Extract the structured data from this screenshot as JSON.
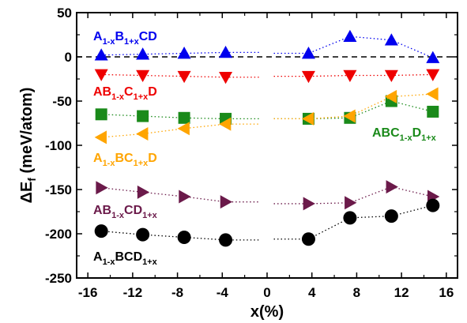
{
  "chart_data": {
    "type": "scatter",
    "xlabel": "x(%)",
    "ylabel": "ΔE",
    "ylabel_sub": "f",
    "ylabel_unit": " (meV/atom)",
    "xlim": [
      -17,
      17
    ],
    "ylim": [
      -250,
      50
    ],
    "xticks": [
      -16,
      -12,
      -8,
      -4,
      0,
      4,
      8,
      12,
      16
    ],
    "yticks": [
      50,
      0,
      -50,
      -100,
      -150,
      -200,
      -250
    ],
    "xticklabels": [
      "-16",
      "-12",
      "-8",
      "-4",
      "0",
      "4",
      "8",
      "12",
      "16"
    ],
    "yticklabels": [
      "50",
      "0",
      "-50",
      "-100",
      "-150",
      "-200",
      "-250"
    ],
    "reference_line": {
      "y": 0,
      "style": "dashed",
      "color": "#000000"
    },
    "series": [
      {
        "name": "A1-xB1+xCD",
        "marker": "triangle-up",
        "color": "#0000ee",
        "x": [
          -14.8,
          -11.1,
          -7.4,
          -3.7,
          3.7,
          7.4,
          11.1,
          14.8
        ],
        "y": [
          2,
          3,
          4,
          5,
          4,
          23,
          19,
          -1
        ]
      },
      {
        "name": "AB1-xC1+xD",
        "marker": "triangle-down",
        "color": "#ee0000",
        "x": [
          -14.8,
          -11.1,
          -7.4,
          -3.7,
          3.7,
          7.4,
          11.1,
          14.8
        ],
        "y": [
          -20,
          -21,
          -22,
          -23,
          -22,
          -21,
          -21,
          -20
        ]
      },
      {
        "name": "ABC1-xD1+x",
        "marker": "square",
        "color": "#1a8a1a",
        "x": [
          -14.8,
          -11.1,
          -7.4,
          -3.7,
          3.7,
          7.4,
          11.1,
          14.8
        ],
        "y": [
          -65,
          -67,
          -69,
          -70,
          -70,
          -69,
          -50,
          -62
        ]
      },
      {
        "name": "A1-xBC1+xD",
        "marker": "triangle-left",
        "color": "#ffa500",
        "x": [
          -14.8,
          -11.1,
          -7.4,
          -3.7,
          3.7,
          7.4,
          11.1,
          14.8
        ],
        "y": [
          -91,
          -87,
          -81,
          -76,
          -70,
          -67,
          -45,
          -42
        ]
      },
      {
        "name": "AB1-xCD1+x",
        "marker": "triangle-right",
        "color": "#6b1a4a",
        "x": [
          -14.8,
          -11.1,
          -7.4,
          -3.7,
          3.7,
          7.4,
          11.1,
          14.8
        ],
        "y": [
          -148,
          -153,
          -158,
          -164,
          -166,
          -165,
          -147,
          -158
        ]
      },
      {
        "name": "A1-xBCD1+x",
        "marker": "circle",
        "color": "#000000",
        "x": [
          -14.8,
          -11.1,
          -7.4,
          -3.7,
          3.7,
          7.4,
          11.1,
          14.8
        ],
        "y": [
          -197,
          -201,
          -204,
          -207,
          -206,
          -182,
          -180,
          -168
        ]
      }
    ],
    "annotations": [
      {
        "color": "#0000ee",
        "parts": [
          [
            "A",
            ""
          ],
          [
            "1-x",
            "sub"
          ],
          [
            "B",
            ""
          ],
          [
            "1+x",
            "sub"
          ],
          [
            "CD",
            ""
          ]
        ]
      },
      {
        "color": "#ee0000",
        "parts": [
          [
            "AB",
            ""
          ],
          [
            "1-x",
            "sub"
          ],
          [
            "C",
            ""
          ],
          [
            "1+x",
            "sub"
          ],
          [
            "D",
            ""
          ]
        ]
      },
      {
        "color": "#ffa500",
        "parts": [
          [
            "A",
            ""
          ],
          [
            "1-x",
            "sub"
          ],
          [
            "BC",
            ""
          ],
          [
            "1+x",
            "sub"
          ],
          [
            "D",
            ""
          ]
        ]
      },
      {
        "color": "#1a8a1a",
        "parts": [
          [
            "ABC",
            ""
          ],
          [
            "1-x",
            "sub"
          ],
          [
            "D",
            ""
          ],
          [
            "1+x",
            "sub"
          ]
        ]
      },
      {
        "color": "#6b1a4a",
        "parts": [
          [
            "AB",
            ""
          ],
          [
            "1-x",
            "sub"
          ],
          [
            "CD",
            ""
          ],
          [
            "1+x",
            "sub"
          ]
        ]
      },
      {
        "color": "#000000",
        "parts": [
          [
            "A",
            ""
          ],
          [
            "1-x",
            "sub"
          ],
          [
            "BCD",
            ""
          ],
          [
            "1+x",
            "sub"
          ]
        ]
      }
    ]
  }
}
